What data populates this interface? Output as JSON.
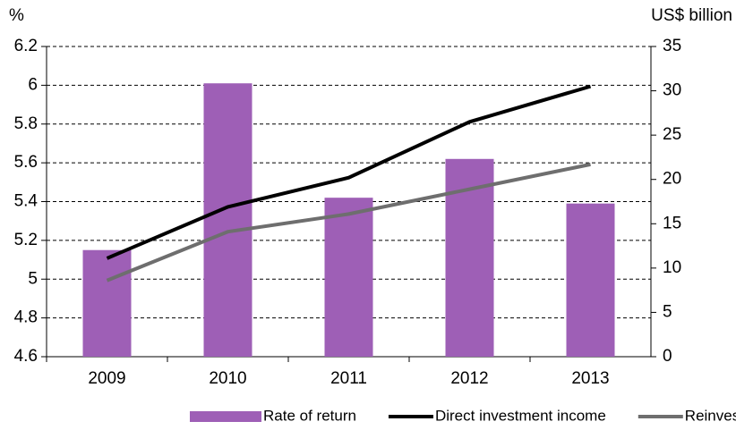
{
  "chart_data": {
    "type": "bar",
    "y_label": "%",
    "y2_label": "US$ billion",
    "categories": [
      "2009",
      "2010",
      "2011",
      "2012",
      "2013"
    ],
    "series": [
      {
        "name": "Rate of return",
        "type": "bar",
        "color": "#9e5fb6",
        "values": [
          5.15,
          6.01,
          5.42,
          5.62,
          5.39
        ]
      },
      {
        "name": "Direct investment income",
        "type": "line",
        "axis": "y2",
        "color": "#000000",
        "values": [
          11.1,
          16.9,
          20.2,
          26.5,
          30.5
        ]
      },
      {
        "name": "Reinvested earnings",
        "type": "line",
        "axis": "y2",
        "color": "#6e6e6e",
        "values": [
          8.6,
          14.1,
          16.1,
          18.9,
          21.7
        ]
      }
    ],
    "ylim": [
      4.6,
      6.2
    ],
    "yticks": [
      4.6,
      4.8,
      5,
      5.2,
      5.4,
      5.6,
      5.8,
      6,
      6.2
    ],
    "y2lim": [
      0,
      35
    ],
    "y2ticks": [
      0,
      5,
      10,
      15,
      20,
      25,
      30,
      35
    ],
    "grid": true,
    "legend": "bottom"
  }
}
